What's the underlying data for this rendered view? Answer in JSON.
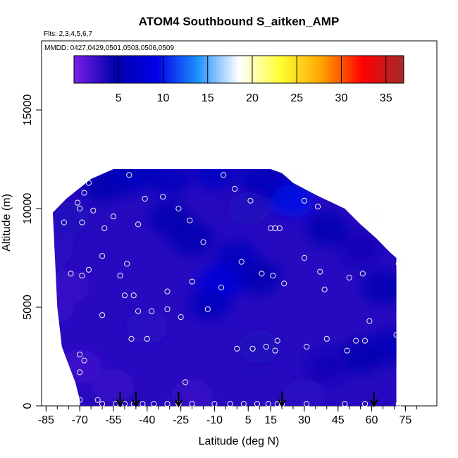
{
  "chart_data": {
    "type": "heatmap",
    "title": "ATOM4 Southbound S_aitken_AMP",
    "subtitle": "Flts: 2,3,4,5,6,7",
    "annotation": "MMDD: 0427,0429,0501,0503,0506,0509",
    "xlabel": "Latitude (deg N)",
    "ylabel": "Altitude (m)",
    "xlim": [
      -87,
      89
    ],
    "ylim": [
      0,
      18500
    ],
    "x_ticks": [
      -85,
      -70,
      -55,
      -40,
      -25,
      -10,
      5,
      15,
      30,
      45,
      60,
      75
    ],
    "x_tick_labels": [
      "-85",
      "-70",
      "-55",
      "-40",
      "-25",
      "-10",
      "5",
      "15",
      "30",
      "45",
      "60",
      "75"
    ],
    "y_ticks": [
      0,
      5000,
      10000,
      15000
    ],
    "y_tick_labels": [
      "0",
      "5000",
      "10000",
      "15000"
    ],
    "grid": false,
    "colorbar": {
      "min": 0,
      "max": 37,
      "ticks": [
        5,
        10,
        15,
        20,
        25,
        30,
        35
      ],
      "tick_labels": [
        "5",
        "10",
        "15",
        "20",
        "25",
        "30",
        "35"
      ],
      "colors": [
        "#7a1fe8",
        "#0000ad",
        "#0000e6",
        "#1e90ff",
        "#ffffff",
        "#ffff33",
        "#ffa500",
        "#ff0000",
        "#a52a2a"
      ],
      "placement": "top"
    },
    "field_extent": {
      "x": [
        -82,
        71
      ],
      "y_top": [
        [
          -82,
          9800
        ],
        [
          -76,
          10500
        ],
        [
          -65,
          11500
        ],
        [
          -55,
          12000
        ],
        [
          -45,
          12000
        ],
        [
          15,
          12000
        ],
        [
          20,
          11800
        ],
        [
          25,
          11300
        ],
        [
          35,
          10700
        ],
        [
          48,
          10000
        ],
        [
          55,
          9200
        ],
        [
          62,
          8500
        ],
        [
          68,
          7800
        ],
        [
          71,
          7500
        ]
      ],
      "y_bottom_left": [
        [
          -82,
          9800
        ],
        [
          -80,
          5000
        ],
        [
          -78,
          3000
        ],
        [
          -72,
          1200
        ],
        [
          -70,
          300
        ]
      ]
    },
    "field_cells": [
      {
        "x": -82,
        "y": 8000,
        "value": 3.0
      },
      {
        "x": -82,
        "y": 5000,
        "value": 2.5
      },
      {
        "x": -75,
        "y": 9500,
        "value": 3.5
      },
      {
        "x": -75,
        "y": 6000,
        "value": 2.5
      },
      {
        "x": -70,
        "y": 2000,
        "value": 2.2
      },
      {
        "x": -60,
        "y": 11200,
        "value": 4.5
      },
      {
        "x": -50,
        "y": 11500,
        "value": 5.5
      },
      {
        "x": -45,
        "y": 11800,
        "value": 6.0
      },
      {
        "x": -30,
        "y": 11500,
        "value": 6.0
      },
      {
        "x": -10,
        "y": 11800,
        "value": 6.5
      },
      {
        "x": 10,
        "y": 11500,
        "value": 6.0
      },
      {
        "x": 20,
        "y": 11000,
        "value": 5.5
      },
      {
        "x": 25,
        "y": 10400,
        "value": 9.5
      },
      {
        "x": 5,
        "y": 10000,
        "value": 3.5
      },
      {
        "x": -30,
        "y": 9500,
        "value": 4.5
      },
      {
        "x": -20,
        "y": 8500,
        "value": 5.0
      },
      {
        "x": -8,
        "y": 6200,
        "value": 9.0
      },
      {
        "x": -4,
        "y": 6500,
        "value": 8.0
      },
      {
        "x": -12,
        "y": 5200,
        "value": 6.0
      },
      {
        "x": 0,
        "y": 7500,
        "value": 6.0
      },
      {
        "x": 10,
        "y": 6500,
        "value": 5.0
      },
      {
        "x": 40,
        "y": 9000,
        "value": 4.5
      },
      {
        "x": 55,
        "y": 8000,
        "value": 4.0
      },
      {
        "x": 65,
        "y": 6000,
        "value": 5.0
      },
      {
        "x": 68,
        "y": 3000,
        "value": 5.5
      },
      {
        "x": 55,
        "y": 2500,
        "value": 4.5
      },
      {
        "x": 40,
        "y": 2000,
        "value": 4.0
      },
      {
        "x": 10,
        "y": 3000,
        "value": 3.5
      },
      {
        "x": -40,
        "y": 4000,
        "value": 3.0
      },
      {
        "x": -55,
        "y": 1000,
        "value": 2.5
      },
      {
        "x": -20,
        "y": 500,
        "value": 2.5
      },
      {
        "x": 30,
        "y": 500,
        "value": 3.0
      }
    ],
    "points": [
      {
        "x": -84,
        "y": 9500
      },
      {
        "x": -77,
        "y": 9300
      },
      {
        "x": -71,
        "y": 10300
      },
      {
        "x": -68,
        "y": 10800
      },
      {
        "x": -66,
        "y": 11300
      },
      {
        "x": -64,
        "y": 9900
      },
      {
        "x": -70,
        "y": 10000
      },
      {
        "x": -69,
        "y": 9300
      },
      {
        "x": -59,
        "y": 9000
      },
      {
        "x": -55,
        "y": 9600
      },
      {
        "x": -48,
        "y": 11700
      },
      {
        "x": -44,
        "y": 9200
      },
      {
        "x": -41,
        "y": 10500
      },
      {
        "x": -33,
        "y": 10600
      },
      {
        "x": -26,
        "y": 10000
      },
      {
        "x": -21,
        "y": 9400
      },
      {
        "x": -15,
        "y": 8300
      },
      {
        "x": -6,
        "y": 11700
      },
      {
        "x": -1,
        "y": 11000
      },
      {
        "x": 6,
        "y": 10400
      },
      {
        "x": 15,
        "y": 9000
      },
      {
        "x": 17,
        "y": 9000
      },
      {
        "x": 19,
        "y": 9000
      },
      {
        "x": 27,
        "y": 11700
      },
      {
        "x": 30,
        "y": 10400
      },
      {
        "x": 36,
        "y": 10100
      },
      {
        "x": 62,
        "y": 9600
      },
      {
        "x": -74,
        "y": 6700
      },
      {
        "x": -69,
        "y": 6600
      },
      {
        "x": -66,
        "y": 6900
      },
      {
        "x": -60,
        "y": 7600
      },
      {
        "x": -52,
        "y": 6600
      },
      {
        "x": -49,
        "y": 7200
      },
      {
        "x": -50,
        "y": 5600
      },
      {
        "x": -46,
        "y": 5600
      },
      {
        "x": -44,
        "y": 4800
      },
      {
        "x": -38,
        "y": 4800
      },
      {
        "x": -31,
        "y": 5800
      },
      {
        "x": -31,
        "y": 4900
      },
      {
        "x": -25,
        "y": 4500
      },
      {
        "x": -20,
        "y": 6300
      },
      {
        "x": -13,
        "y": 4900
      },
      {
        "x": -7,
        "y": 6000
      },
      {
        "x": 2,
        "y": 7300
      },
      {
        "x": 11,
        "y": 6700
      },
      {
        "x": 16,
        "y": 6600
      },
      {
        "x": 21,
        "y": 6200
      },
      {
        "x": 30,
        "y": 7500
      },
      {
        "x": 37,
        "y": 6800
      },
      {
        "x": 39,
        "y": 5900
      },
      {
        "x": 50,
        "y": 6500
      },
      {
        "x": 56,
        "y": 6700
      },
      {
        "x": 59,
        "y": 4300
      },
      {
        "x": 72,
        "y": 7200
      },
      {
        "x": -82,
        "y": 4300
      },
      {
        "x": -60,
        "y": 4600
      },
      {
        "x": -47,
        "y": 3400
      },
      {
        "x": -40,
        "y": 3400
      },
      {
        "x": -70,
        "y": 2600
      },
      {
        "x": -68,
        "y": 2300
      },
      {
        "x": -70,
        "y": 1700
      },
      {
        "x": -23,
        "y": 1200
      },
      {
        "x": 0,
        "y": 2900
      },
      {
        "x": 7,
        "y": 2900
      },
      {
        "x": 13,
        "y": 3000
      },
      {
        "x": 17,
        "y": 2800
      },
      {
        "x": 18,
        "y": 3300
      },
      {
        "x": 31,
        "y": 3000
      },
      {
        "x": 40,
        "y": 3400
      },
      {
        "x": 49,
        "y": 2800
      },
      {
        "x": 53,
        "y": 3300
      },
      {
        "x": 57,
        "y": 3300
      },
      {
        "x": 71,
        "y": 3600
      },
      {
        "x": -70,
        "y": 300
      },
      {
        "x": -62,
        "y": 300
      },
      {
        "x": -60,
        "y": 100
      },
      {
        "x": -54,
        "y": 100
      },
      {
        "x": -50,
        "y": 100
      },
      {
        "x": -46,
        "y": 100
      },
      {
        "x": -42,
        "y": 100
      },
      {
        "x": -37,
        "y": 100
      },
      {
        "x": -31,
        "y": 100
      },
      {
        "x": -26,
        "y": 100
      },
      {
        "x": -20,
        "y": 100
      },
      {
        "x": -10,
        "y": 100
      },
      {
        "x": -3,
        "y": 100
      },
      {
        "x": 3,
        "y": 100
      },
      {
        "x": 9,
        "y": 100
      },
      {
        "x": 14,
        "y": 100
      },
      {
        "x": 18,
        "y": 100
      },
      {
        "x": 20,
        "y": 100
      },
      {
        "x": 31,
        "y": 100
      },
      {
        "x": 48,
        "y": 100
      },
      {
        "x": 57,
        "y": 100
      },
      {
        "x": 72,
        "y": 100
      }
    ],
    "arrows_x": [
      -52,
      -45,
      -26,
      20,
      61
    ]
  }
}
